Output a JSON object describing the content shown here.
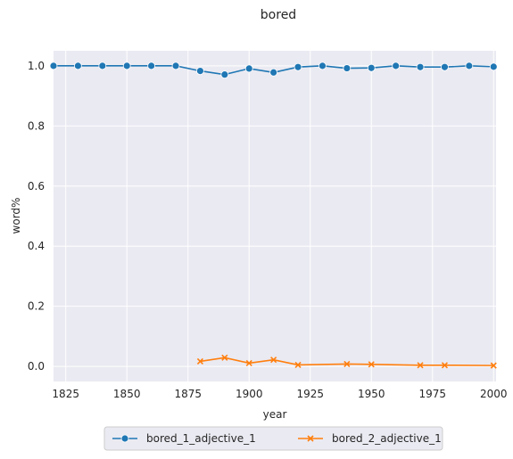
{
  "chart_data": {
    "type": "line",
    "title": "bored",
    "xlabel": "year",
    "ylabel": "word%",
    "xlim": [
      1820,
      2001
    ],
    "ylim": [
      -0.05,
      1.05
    ],
    "x_ticks": [
      "1825",
      "1850",
      "1875",
      "1900",
      "1925",
      "1950",
      "1975",
      "2000"
    ],
    "y_ticks": [
      "0.0",
      "0.2",
      "0.4",
      "0.6",
      "0.8",
      "1.0"
    ],
    "grid": true,
    "legend_position": "bottom-center",
    "series": [
      {
        "name": "bored_1_adjective_1",
        "color": "#1f77b4",
        "marker": "circle",
        "x": [
          1820,
          1830,
          1840,
          1850,
          1860,
          1870,
          1880,
          1890,
          1900,
          1910,
          1920,
          1930,
          1940,
          1950,
          1960,
          1970,
          1980,
          1990,
          2000
        ],
        "y": [
          1.0,
          1.0,
          1.0,
          1.0,
          1.0,
          1.0,
          0.983,
          0.971,
          0.991,
          0.978,
          0.996,
          1.0,
          0.992,
          0.993,
          1.0,
          0.996,
          0.996,
          1.0,
          0.997
        ]
      },
      {
        "name": "bored_2_adjective_1",
        "color": "#ff7f0e",
        "marker": "x",
        "x": [
          1880,
          1890,
          1900,
          1910,
          1920,
          1940,
          1950,
          1970,
          1980,
          2000
        ],
        "y": [
          0.017,
          0.029,
          0.011,
          0.022,
          0.005,
          0.008,
          0.007,
          0.004,
          0.004,
          0.003
        ]
      }
    ]
  }
}
